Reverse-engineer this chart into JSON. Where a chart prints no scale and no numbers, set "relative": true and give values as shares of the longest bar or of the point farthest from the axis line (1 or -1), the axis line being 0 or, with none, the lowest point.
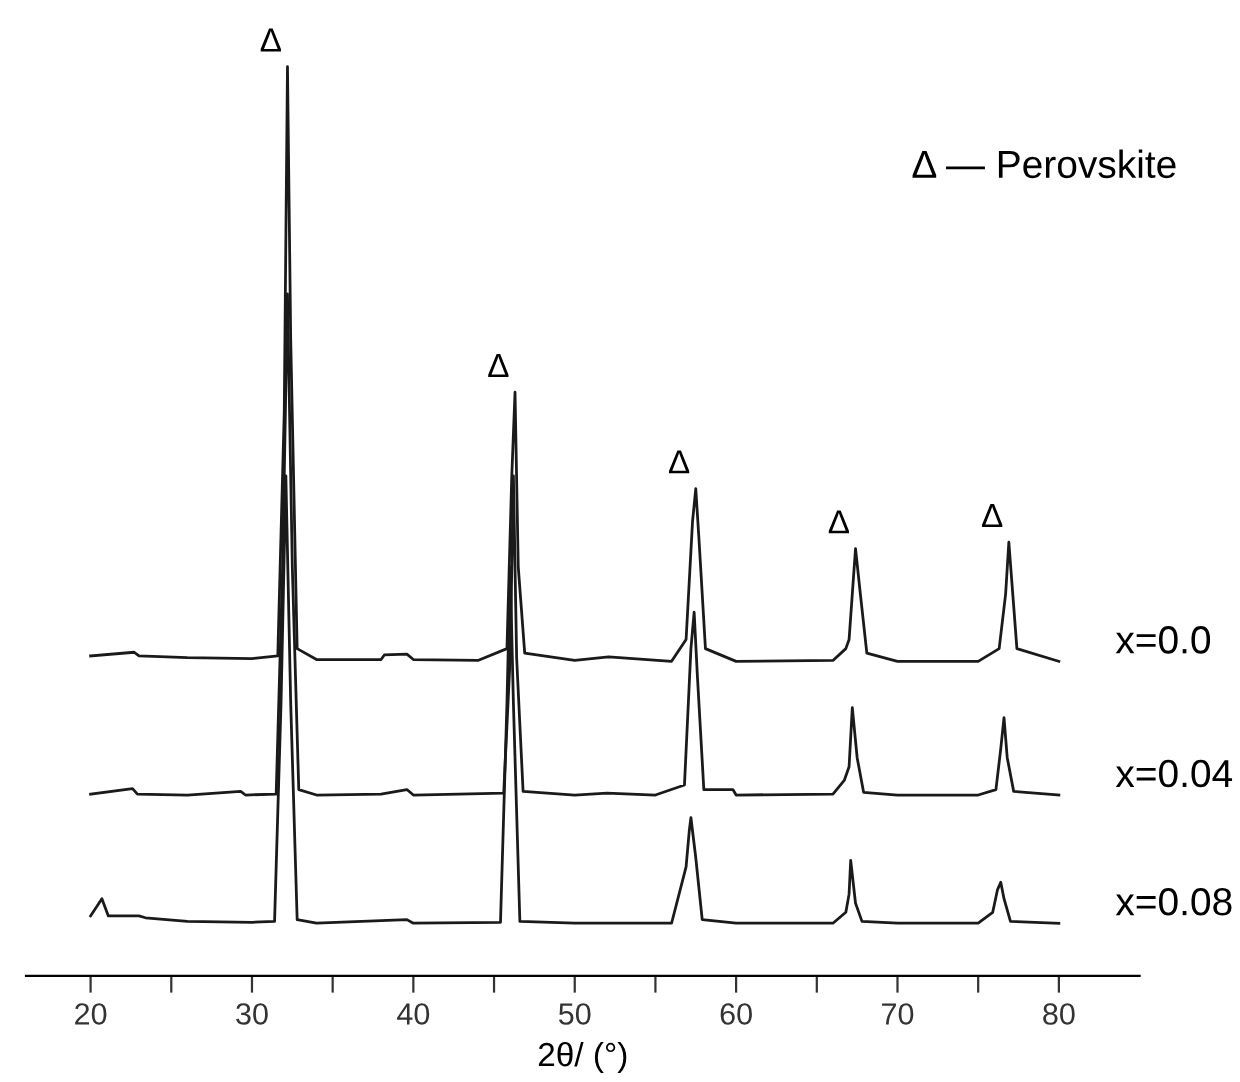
{
  "chart_data": {
    "type": "line",
    "relative": true,
    "xlabel": "2θ/ (°)",
    "xlim": [
      16,
      85
    ],
    "xticks": [
      20,
      {
        "value": 25,
        "label": null
      },
      30,
      {
        "value": 35,
        "label": null
      },
      40,
      {
        "value": 45,
        "label": null
      },
      50,
      {
        "value": 55,
        "label": null
      },
      60,
      {
        "value": 65,
        "label": null
      },
      70,
      {
        "value": 75,
        "label": null
      },
      80
    ],
    "grid": false,
    "legend": false,
    "marker": "none",
    "line_style": "solid",
    "series": [
      {
        "name": "x=0.0",
        "color": "#1a1a1a",
        "x": [
          20,
          22.7,
          23,
          26,
          30,
          31.6,
          32.0,
          32.2,
          32.4,
          32.8,
          34,
          38,
          38.2,
          39.6,
          40,
          44,
          45.8,
          46.1,
          46.3,
          46.5,
          46.9,
          50,
          52.1,
          56,
          56.9,
          57.3,
          57.5,
          57.7,
          58.1,
          60,
          66,
          66.8,
          67.0,
          67.4,
          67.7,
          68.1,
          70,
          75,
          76.3,
          76.7,
          76.9,
          77.1,
          77.4,
          80
        ],
        "values": [
          0.352,
          0.356,
          0.352,
          0.35,
          0.349,
          0.352,
          0.62,
          1.0,
          0.7,
          0.36,
          0.348,
          0.348,
          0.353,
          0.354,
          0.348,
          0.347,
          0.36,
          0.55,
          0.642,
          0.45,
          0.355,
          0.347,
          0.351,
          0.346,
          0.37,
          0.5,
          0.536,
          0.48,
          0.36,
          0.346,
          0.347,
          0.36,
          0.37,
          0.47,
          0.42,
          0.355,
          0.346,
          0.346,
          0.36,
          0.42,
          0.477,
          0.43,
          0.36,
          0.346
        ]
      },
      {
        "name": "x=0.04",
        "color": "#1a1a1a",
        "x": [
          20,
          22.6,
          22.9,
          26,
          29.3,
          29.6,
          31.5,
          31.9,
          32.2,
          32.5,
          32.9,
          34,
          38,
          39.6,
          40,
          45.6,
          46.0,
          46.2,
          46.4,
          46.8,
          50,
          52,
          55,
          56.8,
          57.2,
          57.4,
          57.6,
          58,
          59.8,
          60,
          66,
          66.7,
          67.0,
          67.2,
          67.5,
          67.9,
          70,
          75,
          76.1,
          76.4,
          76.6,
          76.8,
          77.2,
          80
        ],
        "values": [
          0.2,
          0.206,
          0.2,
          0.199,
          0.203,
          0.199,
          0.2,
          0.45,
          0.75,
          0.45,
          0.205,
          0.199,
          0.2,
          0.205,
          0.199,
          0.201,
          0.35,
          0.55,
          0.35,
          0.203,
          0.199,
          0.201,
          0.199,
          0.21,
          0.36,
          0.4,
          0.33,
          0.205,
          0.205,
          0.199,
          0.2,
          0.215,
          0.23,
          0.295,
          0.24,
          0.202,
          0.199,
          0.199,
          0.205,
          0.25,
          0.284,
          0.24,
          0.203,
          0.199
        ]
      },
      {
        "name": "x=0.08",
        "color": "#1a1a1a",
        "x": [
          20,
          20.7,
          21.1,
          23,
          23.4,
          26,
          30,
          31.4,
          31.8,
          32.1,
          32.4,
          32.8,
          34,
          39.6,
          40,
          45.4,
          45.8,
          46.0,
          46.2,
          46.6,
          50,
          56,
          56.9,
          57.1,
          57.2,
          57.5,
          57.9,
          60,
          66,
          66.8,
          67.0,
          67.1,
          67.4,
          67.8,
          70,
          75,
          75.9,
          76.2,
          76.4,
          76.6,
          77.0,
          80
        ],
        "values": [
          0.066,
          0.085,
          0.066,
          0.066,
          0.064,
          0.06,
          0.059,
          0.06,
          0.3,
          0.55,
          0.3,
          0.062,
          0.058,
          0.062,
          0.058,
          0.059,
          0.3,
          0.45,
          0.3,
          0.06,
          0.058,
          0.058,
          0.12,
          0.16,
          0.174,
          0.13,
          0.062,
          0.058,
          0.058,
          0.07,
          0.09,
          0.127,
          0.08,
          0.06,
          0.058,
          0.058,
          0.07,
          0.095,
          0.103,
          0.085,
          0.06,
          0.058
        ]
      }
    ],
    "annotations": [
      {
        "text": "Δ",
        "x": 32.2,
        "y": 1.0
      },
      {
        "text": "Δ",
        "x": 46.3,
        "y": 0.642
      },
      {
        "text": "Δ",
        "x": 57.5,
        "y": 0.536
      },
      {
        "text": "Δ",
        "x": 67.4,
        "y": 0.47
      },
      {
        "text": "Δ",
        "x": 76.9,
        "y": 0.477
      },
      "Δ — Perovskite"
    ]
  }
}
